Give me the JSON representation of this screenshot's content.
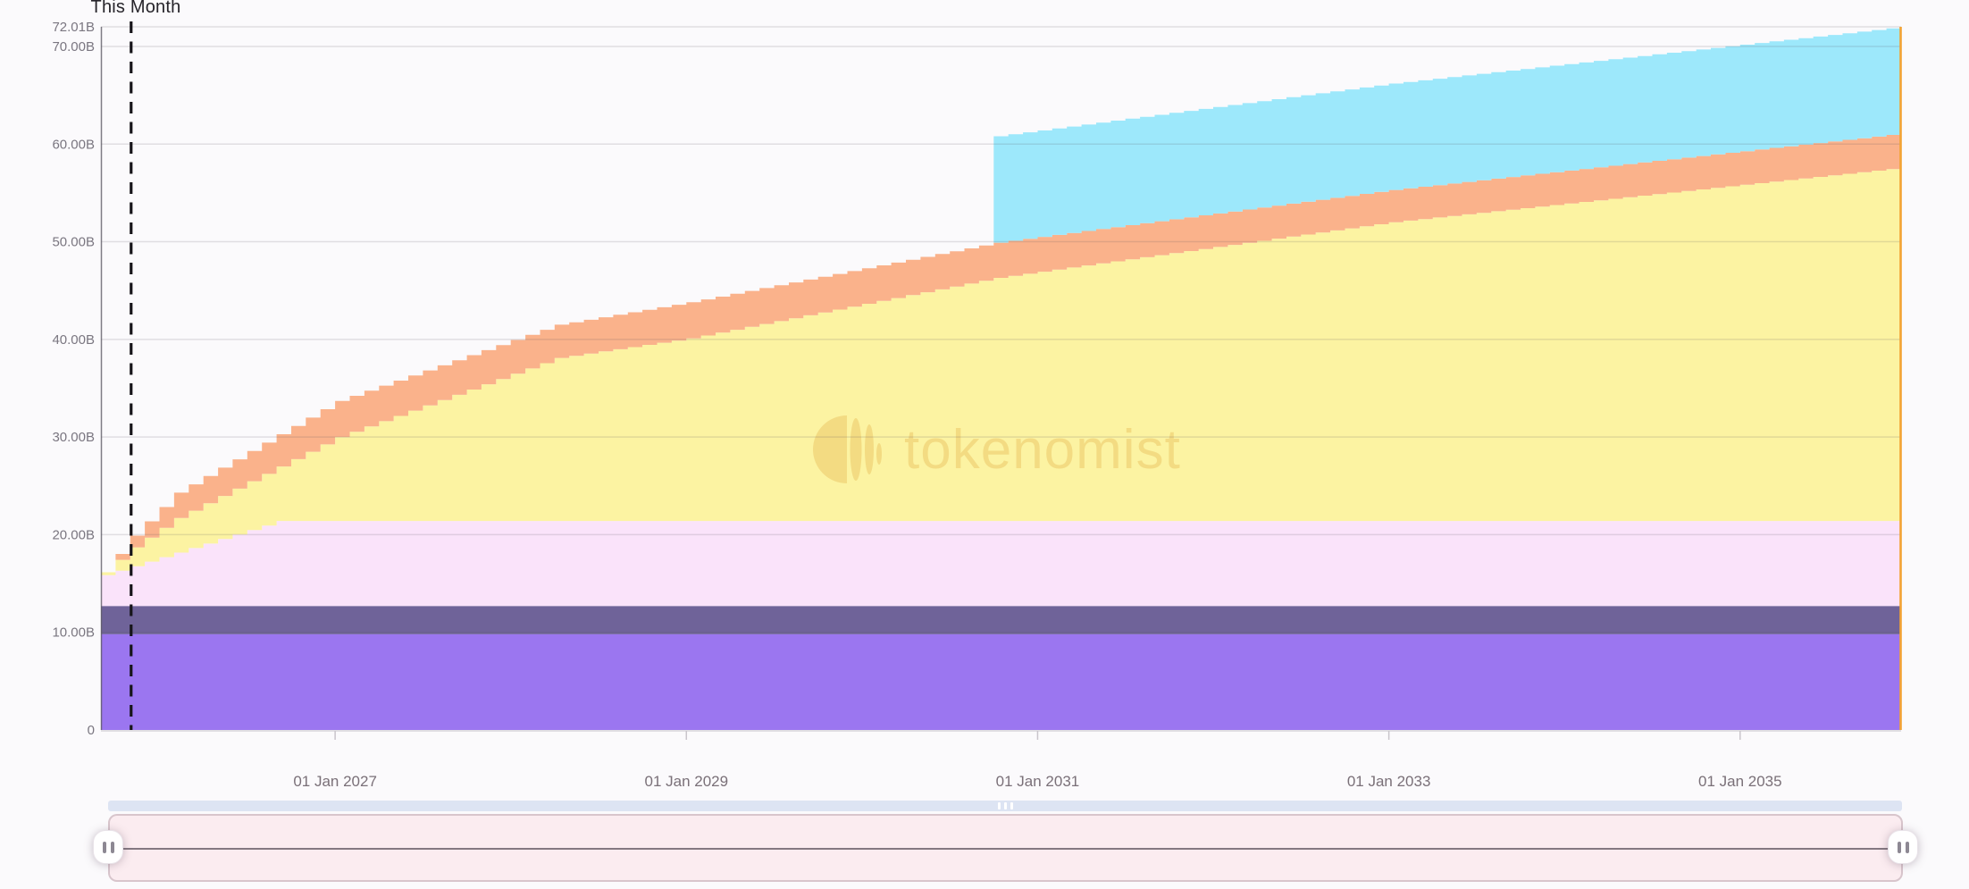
{
  "chart": {
    "annotation_label": "This Month"
  },
  "watermark": {
    "text": "tokenomist",
    "color": "#e2ae45",
    "opacity": 0.34
  },
  "y_axis": {
    "ticks": [
      {
        "value": 72.01,
        "label": "72.01B",
        "grid": true
      },
      {
        "value": 70,
        "label": "70.00B",
        "grid": true
      },
      {
        "value": 60,
        "label": "60.00B",
        "grid": true
      },
      {
        "value": 50,
        "label": "50.00B",
        "grid": true
      },
      {
        "value": 40,
        "label": "40.00B",
        "grid": true
      },
      {
        "value": 30,
        "label": "30.00B",
        "grid": true
      },
      {
        "value": 20,
        "label": "20.00B",
        "grid": true
      },
      {
        "value": 10,
        "label": "10.00B",
        "grid": true
      },
      {
        "value": 0,
        "label": "0",
        "grid": false
      }
    ]
  },
  "x_axis": {
    "ticks": [
      {
        "month_index": 16,
        "label": "01 Jan 2027"
      },
      {
        "month_index": 40,
        "label": "01 Jan 2029"
      },
      {
        "month_index": 64,
        "label": "01 Jan 2031"
      },
      {
        "month_index": 88,
        "label": "01 Jan 2033"
      },
      {
        "month_index": 112,
        "label": "01 Jan 2035"
      }
    ]
  },
  "chart_data": {
    "type": "area",
    "stacked": true,
    "step": "monthly",
    "x_start": "2025-09",
    "x_end": "2035-11",
    "n_months": 123,
    "unit": "billions of tokens",
    "ylim": [
      0,
      72.01
    ],
    "grid": true,
    "legend": "none",
    "this_month": {
      "month_index": 2
    },
    "end_line": {
      "color": "#f3a233",
      "value_at_end": 72.01
    },
    "series": [
      {
        "name": "purple-band",
        "color": "#9b76f0",
        "top_keyframes": [
          [
            0,
            9.8
          ],
          [
            123,
            9.8
          ]
        ]
      },
      {
        "name": "slate-band",
        "color": "#6f6399",
        "top_keyframes": [
          [
            0,
            12.7
          ],
          [
            123,
            12.7
          ]
        ]
      },
      {
        "name": "pink-band",
        "color": "#fae3fa",
        "top_keyframes": [
          [
            0,
            15.85
          ],
          [
            12,
            21.4
          ],
          [
            123,
            21.4
          ]
        ]
      },
      {
        "name": "yellow-band",
        "color": "#fcf3a2",
        "top_keyframes": [
          [
            0,
            16.15
          ],
          [
            2,
            18.7
          ],
          [
            5,
            21.7
          ],
          [
            16,
            30.0
          ],
          [
            31,
            38.1
          ],
          [
            40,
            40.1
          ],
          [
            61,
            46.3
          ],
          [
            88,
            52.0
          ],
          [
            123,
            57.6
          ]
        ]
      },
      {
        "name": "salmon-band",
        "color": "#fab28b",
        "top_keyframes": [
          [
            0,
            16.15
          ],
          [
            2,
            19.9
          ],
          [
            5,
            24.3
          ],
          [
            16,
            33.7
          ],
          [
            31,
            41.5
          ],
          [
            40,
            43.8
          ],
          [
            61,
            49.9
          ],
          [
            88,
            55.3
          ],
          [
            123,
            61.1
          ]
        ]
      },
      {
        "name": "cyan-band",
        "color": "#9de8fb",
        "start_month": 61,
        "top_keyframes": [
          [
            61,
            60.8
          ],
          [
            88,
            66.2
          ],
          [
            123,
            72.01
          ]
        ]
      }
    ]
  },
  "navigator": {
    "scrollbar_grip_icon": "grip-dots-horizontal",
    "left_handle_icon": "drag-handle-bars",
    "right_handle_icon": "drag-handle-bars"
  },
  "style": {
    "grid_color": "#57525c",
    "axis_line_color": "#5f5c66",
    "dash_line_color": "#17151a",
    "y_label_color": "#7a7680",
    "x_label_color": "#7a7078",
    "scrollbar_color": "#dde4f3",
    "track_color": "#fbecf0"
  }
}
